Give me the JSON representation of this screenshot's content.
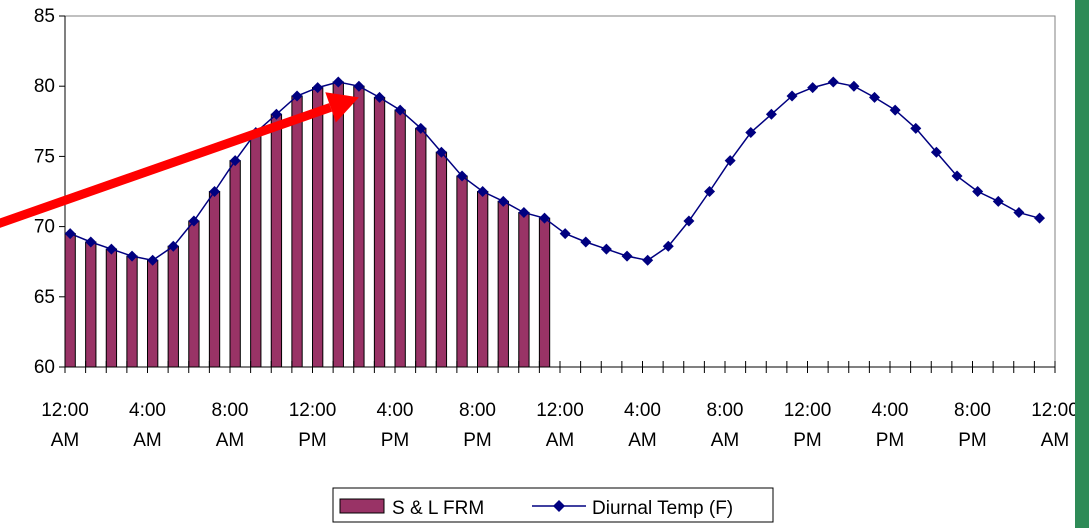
{
  "chart_data": {
    "type": "bar",
    "title": "",
    "xlabel": "",
    "ylabel": "",
    "ylim": [
      60,
      85
    ],
    "yticks": [
      60,
      65,
      70,
      75,
      80,
      85
    ],
    "xtick_labels": [
      {
        "line1": "12:00",
        "line2": "AM"
      },
      {
        "line1": "4:00",
        "line2": "AM"
      },
      {
        "line1": "8:00",
        "line2": "AM"
      },
      {
        "line1": "12:00",
        "line2": "PM"
      },
      {
        "line1": "4:00",
        "line2": "PM"
      },
      {
        "line1": "8:00",
        "line2": "PM"
      },
      {
        "line1": "12:00",
        "line2": "AM"
      },
      {
        "line1": "4:00",
        "line2": "AM"
      },
      {
        "line1": "8:00",
        "line2": "AM"
      },
      {
        "line1": "12:00",
        "line2": "PM"
      },
      {
        "line1": "4:00",
        "line2": "PM"
      },
      {
        "line1": "8:00",
        "line2": "PM"
      },
      {
        "line1": "12:00",
        "line2": "AM"
      }
    ],
    "hours_per_label": 4,
    "grid": false,
    "legend_position": "bottom",
    "series": [
      {
        "name": "S & L FRM",
        "type": "bar",
        "color": "#993366",
        "values": [
          69.5,
          68.9,
          68.4,
          67.9,
          67.6,
          68.6,
          70.4,
          72.5,
          74.7,
          76.7,
          78.0,
          79.3,
          79.9,
          80.3,
          80.0,
          79.2,
          78.3,
          77.0,
          75.3,
          73.6,
          72.5,
          71.8,
          71.0,
          70.6
        ]
      },
      {
        "name": "Diurnal Temp (F)",
        "type": "line",
        "color": "#000080",
        "marker": "diamond",
        "values": [
          69.5,
          68.9,
          68.4,
          67.9,
          67.6,
          68.6,
          70.4,
          72.5,
          74.7,
          76.7,
          78.0,
          79.3,
          79.9,
          80.3,
          80.0,
          79.2,
          78.3,
          77.0,
          75.3,
          73.6,
          72.5,
          71.8,
          71.0,
          70.6,
          69.5,
          68.9,
          68.4,
          67.9,
          67.6,
          68.6,
          70.4,
          72.5,
          74.7,
          76.7,
          78.0,
          79.3,
          79.9,
          80.3,
          80.0,
          79.2,
          78.3,
          77.0,
          75.3,
          73.6,
          72.5,
          71.8,
          71.0,
          70.6
        ]
      }
    ],
    "annotation": {
      "type": "arrow",
      "color": "#ff0000",
      "from": {
        "x": -3.5,
        "y": 70.2
      },
      "to": {
        "x": 14.0,
        "y": 79.2
      }
    }
  },
  "colors": {
    "right_strip": "#2e8b57"
  }
}
